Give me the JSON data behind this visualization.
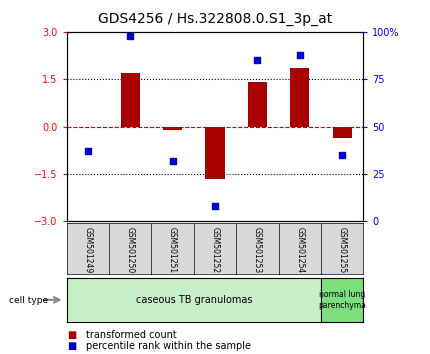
{
  "title": "GDS4256 / Hs.322808.0.S1_3p_at",
  "samples": [
    "GSM501249",
    "GSM501250",
    "GSM501251",
    "GSM501252",
    "GSM501253",
    "GSM501254",
    "GSM501255"
  ],
  "transformed_count": [
    0.0,
    1.7,
    -0.1,
    -1.65,
    1.4,
    1.85,
    -0.35
  ],
  "percentile_rank": [
    37,
    98,
    32,
    8,
    85,
    88,
    35
  ],
  "ylim_left": [
    -3,
    3
  ],
  "ylim_right": [
    0,
    100
  ],
  "yticks_left": [
    -3,
    -1.5,
    0,
    1.5,
    3
  ],
  "yticks_right": [
    0,
    25,
    50,
    75,
    100
  ],
  "ytick_labels_right": [
    "0",
    "25",
    "50",
    "75",
    "100%"
  ],
  "hlines": [
    1.5,
    -1.5
  ],
  "hline_zero_color": "#cc0000",
  "bar_color": "#aa0000",
  "dot_color": "#0000cc",
  "bar_width": 0.45,
  "group1_label": "caseous TB granulomas",
  "group2_label": "normal lung\nparenchyma",
  "group1_color": "#c8f0c8",
  "group2_color": "#7de07d",
  "cell_type_label": "cell type",
  "legend_bar_label": "transformed count",
  "legend_dot_label": "percentile rank within the sample",
  "title_fontsize": 10,
  "tick_fontsize": 7,
  "sample_label_fontsize": 5.5,
  "cell_fontsize": 7,
  "legend_fontsize": 7
}
